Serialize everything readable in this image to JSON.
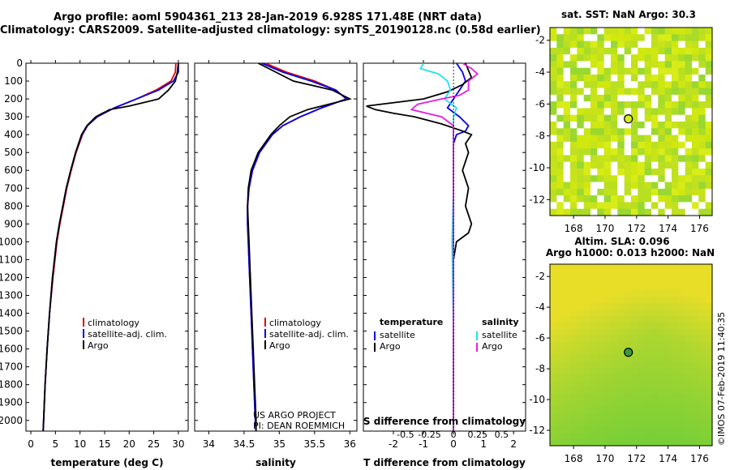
{
  "header": {
    "line1": "Argo profile: aoml 5904361_213 28-Jan-2019 6.928S 171.48E (NRT data)",
    "line2": "Climatology: CARS2009. Satellite-adjusted climatology: synTS_20190128.nc (0.58d earlier)"
  },
  "footer_credit": "©IMOS 07-Feb-2019 11:40:35",
  "project_note": [
    "US ARGO PROJECT",
    "PI: DEAN ROEMMICH"
  ],
  "colors": {
    "climatology": "#e00000",
    "satellite": "#0000ee",
    "argo": "#000000",
    "sat_salinity": "#22e0f0",
    "argo_salinity": "#e020e0"
  },
  "chart_data": [
    {
      "type": "line",
      "name": "temperature",
      "xlabel": "temperature (deg C)",
      "ylabel": "",
      "xlim": [
        -1,
        32
      ],
      "ylim": [
        2060,
        0
      ],
      "xticks": [
        0,
        5,
        10,
        15,
        20,
        25,
        30
      ],
      "yticks": [
        0,
        100,
        200,
        300,
        400,
        500,
        600,
        700,
        800,
        900,
        1000,
        1100,
        1200,
        1300,
        1400,
        1500,
        1600,
        1700,
        1800,
        1900,
        2000
      ],
      "legend": [
        "climatology",
        "satellite-adj. clim.",
        "Argo"
      ],
      "series": [
        {
          "name": "climatology",
          "color": "#e00000",
          "depth": [
            0,
            50,
            100,
            150,
            200,
            250,
            300,
            350,
            400,
            500,
            600,
            700,
            800,
            900,
            1000,
            1200,
            1400,
            1600,
            1800,
            2000,
            2060
          ],
          "values": [
            29.5,
            29.4,
            28.5,
            25.5,
            21.5,
            17,
            13.5,
            11.5,
            10.5,
            9.2,
            8.2,
            7.3,
            6.6,
            5.9,
            5.3,
            4.5,
            3.8,
            3.3,
            2.9,
            2.6,
            2.5
          ]
        },
        {
          "name": "satellite-adj. clim.",
          "color": "#0000ee",
          "depth": [
            0,
            50,
            100,
            150,
            200,
            250,
            300,
            350,
            400,
            500,
            600,
            700,
            800,
            900,
            1000,
            1200,
            1400,
            1600,
            1800,
            2000,
            2060
          ],
          "values": [
            30,
            30,
            29,
            26,
            21.5,
            17,
            13.5,
            11.5,
            10.4,
            9.1,
            8.1,
            7.2,
            6.5,
            5.8,
            5.2,
            4.4,
            3.8,
            3.3,
            2.9,
            2.6,
            2.5
          ]
        },
        {
          "name": "Argo",
          "color": "#000000",
          "depth": [
            0,
            50,
            100,
            150,
            200,
            240,
            260,
            300,
            350,
            400,
            500,
            600,
            700,
            800,
            900,
            1000,
            1200,
            1400,
            1600,
            1800,
            2000,
            2060
          ],
          "values": [
            30,
            29.8,
            29.4,
            28,
            26,
            20,
            16,
            13.2,
            11.4,
            10.3,
            9.1,
            8.1,
            7.2,
            6.5,
            5.8,
            5.2,
            4.4,
            3.8,
            3.3,
            2.9,
            2.6,
            2.5
          ]
        }
      ]
    },
    {
      "type": "line",
      "name": "salinity",
      "xlabel": "salinity",
      "xlim": [
        33.8,
        36.1
      ],
      "ylim": [
        2060,
        0
      ],
      "xticks": [
        34,
        34.5,
        35,
        35.5,
        36
      ],
      "legend": [
        "climatology",
        "satellite-adj. clim.",
        "Argo"
      ],
      "series": [
        {
          "name": "climatology",
          "color": "#e00000",
          "depth": [
            0,
            50,
            100,
            150,
            200,
            250,
            300,
            350,
            400,
            500,
            600,
            700,
            800,
            900,
            1000,
            1200,
            1400,
            1600,
            1800,
            2000,
            2060
          ],
          "values": [
            34.8,
            35.1,
            35.5,
            35.8,
            35.95,
            35.6,
            35.3,
            35.05,
            34.9,
            34.72,
            34.62,
            34.57,
            34.55,
            34.55,
            34.56,
            34.58,
            34.6,
            34.62,
            34.64,
            34.66,
            34.67
          ]
        },
        {
          "name": "satellite-adj. clim.",
          "color": "#0000ee",
          "depth": [
            0,
            50,
            100,
            150,
            200,
            250,
            300,
            350,
            400,
            500,
            600,
            700,
            800,
            900,
            1000,
            1200,
            1400,
            1600,
            1800,
            2000,
            2060
          ],
          "values": [
            34.75,
            35.05,
            35.45,
            35.8,
            35.95,
            35.6,
            35.3,
            35.05,
            34.9,
            34.72,
            34.62,
            34.57,
            34.55,
            34.55,
            34.56,
            34.58,
            34.6,
            34.62,
            34.64,
            34.66,
            34.67
          ]
        },
        {
          "name": "Argo",
          "color": "#000000",
          "depth": [
            0,
            50,
            100,
            150,
            200,
            230,
            260,
            300,
            350,
            400,
            500,
            600,
            700,
            800,
            900,
            1000,
            1200,
            1400,
            1600,
            1800,
            2000,
            2060
          ],
          "values": [
            34.7,
            34.95,
            35.2,
            35.75,
            36.0,
            35.7,
            35.4,
            35.15,
            35.0,
            34.88,
            34.7,
            34.6,
            34.56,
            34.55,
            34.56,
            34.57,
            34.59,
            34.61,
            34.63,
            34.65,
            34.67,
            34.67
          ]
        }
      ]
    },
    {
      "type": "line",
      "name": "differences",
      "xlabel": "T difference from climatology",
      "xlabel2": "S difference from climatology",
      "xlim": [
        -3,
        2.4
      ],
      "ylim": [
        2060,
        0
      ],
      "xticks": [
        -2,
        -1,
        0,
        1,
        2
      ],
      "xticks2": [
        "-0.5",
        "-0.25",
        "0",
        "0.25",
        "0.5"
      ],
      "xticks2_pos": [
        -1.6,
        -0.8,
        0,
        0.8,
        1.6
      ],
      "legend_left_title": "temperature",
      "legend_right_title": "salinity",
      "legend_left": [
        "satellite",
        "Argo"
      ],
      "legend_right": [
        "satellite",
        "Argo"
      ],
      "series": [
        {
          "name": "T satellite",
          "color": "#0000ee",
          "depth": [
            0,
            50,
            100,
            150,
            200,
            250,
            300,
            350,
            380,
            400,
            450,
            500,
            700,
            1000,
            1500,
            2000,
            2060
          ],
          "values": [
            0.1,
            0.3,
            0.4,
            0.2,
            0,
            -0.2,
            0.2,
            0.5,
            0.4,
            0.1,
            0,
            0,
            0,
            0,
            0,
            0,
            0
          ]
        },
        {
          "name": "T Argo",
          "color": "#000000",
          "depth": [
            0,
            40,
            80,
            120,
            160,
            200,
            240,
            260,
            280,
            300,
            340,
            380,
            400,
            450,
            500,
            550,
            600,
            700,
            800,
            850,
            900,
            950,
            1000,
            1100,
            1500,
            2000,
            2060
          ],
          "values": [
            0.4,
            0.5,
            0.6,
            0.3,
            -0.2,
            -1.0,
            -2.9,
            -2.6,
            -2.0,
            -1.3,
            -0.4,
            0.3,
            0.6,
            0.4,
            0.5,
            0.4,
            0.3,
            0.5,
            0.4,
            0.5,
            0.6,
            0.5,
            0.1,
            0,
            0,
            0,
            0
          ]
        },
        {
          "name": "S satellite",
          "color": "#22e0f0",
          "depth": [
            0,
            30,
            60,
            100,
            150,
            200,
            250,
            300,
            350,
            400,
            500,
            700,
            1000,
            1500,
            2000,
            2060
          ],
          "values": [
            -1.0,
            -1.1,
            -0.5,
            -0.2,
            -0.1,
            -0.3,
            0.1,
            0,
            0,
            0,
            0,
            0,
            -0.05,
            0,
            0,
            0
          ]
        },
        {
          "name": "S Argo",
          "color": "#e020e0",
          "depth": [
            0,
            30,
            60,
            100,
            150,
            180,
            200,
            230,
            260,
            300,
            350,
            400,
            500,
            700,
            1000,
            1500,
            2000,
            2060
          ],
          "values": [
            0.3,
            0.6,
            0.8,
            0.5,
            0.5,
            0.2,
            -0.4,
            -1.2,
            -1.4,
            -0.4,
            0,
            0,
            0,
            0,
            0,
            0,
            0,
            0
          ]
        }
      ]
    },
    {
      "type": "heatmap",
      "name": "sst",
      "title": "sat. SST: NaN Argo: 30.3",
      "xlim": [
        166.5,
        176.8
      ],
      "ylim": [
        -13,
        -1.2
      ],
      "xticks": [
        168,
        170,
        172,
        174,
        176
      ],
      "yticks": [
        -2,
        -4,
        -6,
        -8,
        -10,
        -12
      ],
      "marker": {
        "lon": 171.48,
        "lat": -6.928
      }
    },
    {
      "type": "heatmap",
      "name": "sla",
      "title": "Altim. SLA: 0.096",
      "subtitle": "Argo h1000: 0.013 h2000: NaN",
      "xlim": [
        166.5,
        176.8
      ],
      "ylim": [
        -13,
        -1.2
      ],
      "xticks": [
        168,
        170,
        172,
        174,
        176
      ],
      "yticks": [
        -2,
        -4,
        -6,
        -8,
        -10,
        -12
      ],
      "marker": {
        "lon": 171.48,
        "lat": -6.928
      }
    }
  ]
}
